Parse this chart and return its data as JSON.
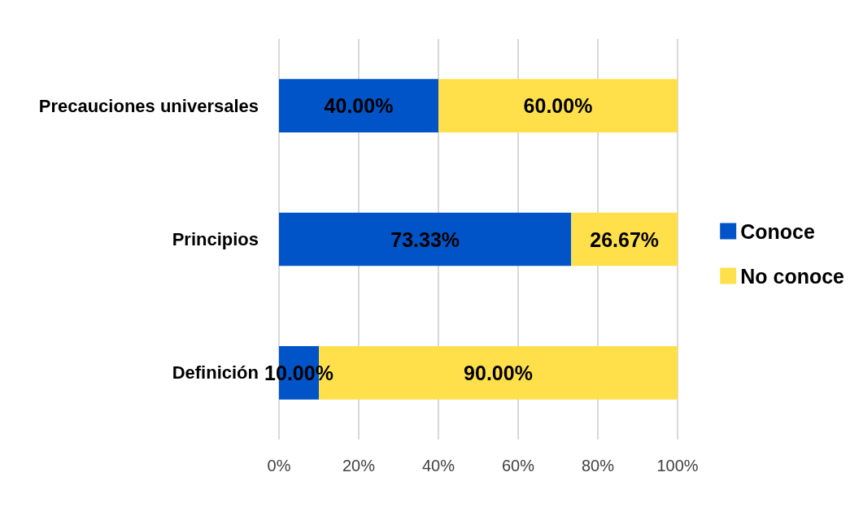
{
  "chart_data": {
    "type": "bar",
    "orientation": "horizontal",
    "stacked": true,
    "categories": [
      "Precauciones universales",
      "Principios",
      "Definición"
    ],
    "series": [
      {
        "name": "Conoce",
        "color": "#0054c8",
        "values": [
          40.0,
          73.33,
          10.0
        ],
        "value_labels": [
          "40.00%",
          "73.33%",
          "10.00%"
        ]
      },
      {
        "name": "No conoce",
        "color": "#ffe04b",
        "values": [
          60.0,
          26.67,
          90.0
        ],
        "value_labels": [
          "60.00%",
          "26.67%",
          "90.00%"
        ]
      }
    ],
    "xlim": [
      0,
      100
    ],
    "xticks": [
      {
        "value": 0,
        "label": "0%"
      },
      {
        "value": 20,
        "label": "20%"
      },
      {
        "value": 40,
        "label": "40%"
      },
      {
        "value": 60,
        "label": "60%"
      },
      {
        "value": 80,
        "label": "80%"
      },
      {
        "value": 100,
        "label": "100%"
      }
    ],
    "grid": "x",
    "legend": "right"
  }
}
